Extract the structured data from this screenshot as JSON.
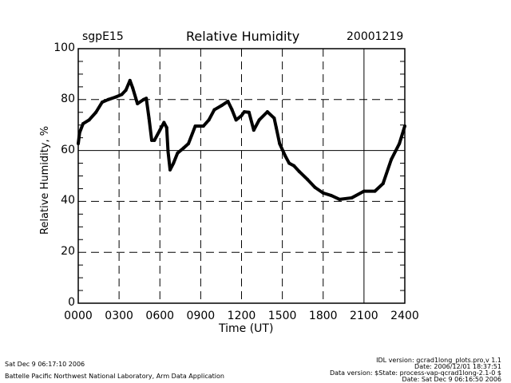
{
  "chart_data": {
    "type": "line",
    "site": "sgpE15",
    "title": "Relative Humidity",
    "date": "20001219",
    "xlabel": "Time (UT)",
    "ylabel": "Relative Humidity, %",
    "xlim": [
      0,
      24
    ],
    "ylim": [
      0,
      100
    ],
    "x_ticks": [
      {
        "v": 0,
        "label": "0000"
      },
      {
        "v": 3,
        "label": "0300"
      },
      {
        "v": 6,
        "label": "0600"
      },
      {
        "v": 9,
        "label": "0900"
      },
      {
        "v": 12,
        "label": "1200"
      },
      {
        "v": 15,
        "label": "1500"
      },
      {
        "v": 18,
        "label": "1800"
      },
      {
        "v": 21,
        "label": "2100"
      },
      {
        "v": 24,
        "label": "2400"
      }
    ],
    "y_ticks": [
      {
        "v": 0,
        "label": "0"
      },
      {
        "v": 20,
        "label": "20"
      },
      {
        "v": 40,
        "label": "40"
      },
      {
        "v": 60,
        "label": "60"
      },
      {
        "v": 80,
        "label": "80"
      },
      {
        "v": 100,
        "label": "100"
      }
    ],
    "grid": true,
    "series": [
      {
        "name": "Relative Humidity",
        "x_hours": [
          0,
          0.1,
          0.35,
          0.8,
          1.3,
          1.76,
          2.2,
          2.75,
          3.2,
          3.5,
          3.8,
          4.0,
          4.35,
          4.8,
          5.0,
          5.2,
          5.4,
          5.6,
          6.0,
          6.3,
          6.5,
          6.6,
          6.75,
          7.0,
          7.3,
          7.75,
          8.1,
          8.6,
          9.2,
          9.6,
          10.0,
          10.55,
          11.0,
          11.3,
          11.6,
          12.0,
          12.2,
          12.55,
          12.9,
          13.3,
          13.9,
          14.4,
          14.55,
          14.8,
          15.2,
          15.5,
          15.85,
          16.25,
          16.85,
          17.4,
          18.0,
          18.6,
          19.2,
          20.1,
          21.0,
          21.8,
          22.4,
          23.0,
          23.6,
          24.0
        ],
        "values": [
          62.7,
          67,
          70.5,
          72,
          75,
          79,
          80,
          81,
          82,
          83.7,
          87.5,
          84.6,
          78.4,
          80,
          80.5,
          72.7,
          64,
          64,
          68,
          71,
          69,
          59.6,
          52.4,
          55,
          59,
          61,
          62.7,
          69.6,
          69.6,
          72,
          76,
          77.7,
          79.3,
          76,
          72,
          73.7,
          75.2,
          75,
          68,
          72,
          75.2,
          72.7,
          69,
          62.7,
          58,
          55,
          54,
          51.7,
          48.6,
          45.5,
          43.3,
          42.3,
          40.8,
          41.4,
          44,
          44,
          47,
          56.4,
          62.7,
          69.6
        ]
      }
    ]
  },
  "footer": {
    "timestamp": "Sat Dec  9 06:17:10 2006",
    "organization": "Battelle Pacific Northwest National Laboratory, Arm Data Application",
    "idl_version": "IDL version: gcrad1long_plots.pro,v 1.1",
    "idl_date": "Date: 2006/12/01 18:37:51",
    "data_version": "Data version: $State: process-vap-qcrad1long-2.1-0 $",
    "data_date": "Date: Sat Dec  9 06:16:50 2006"
  }
}
